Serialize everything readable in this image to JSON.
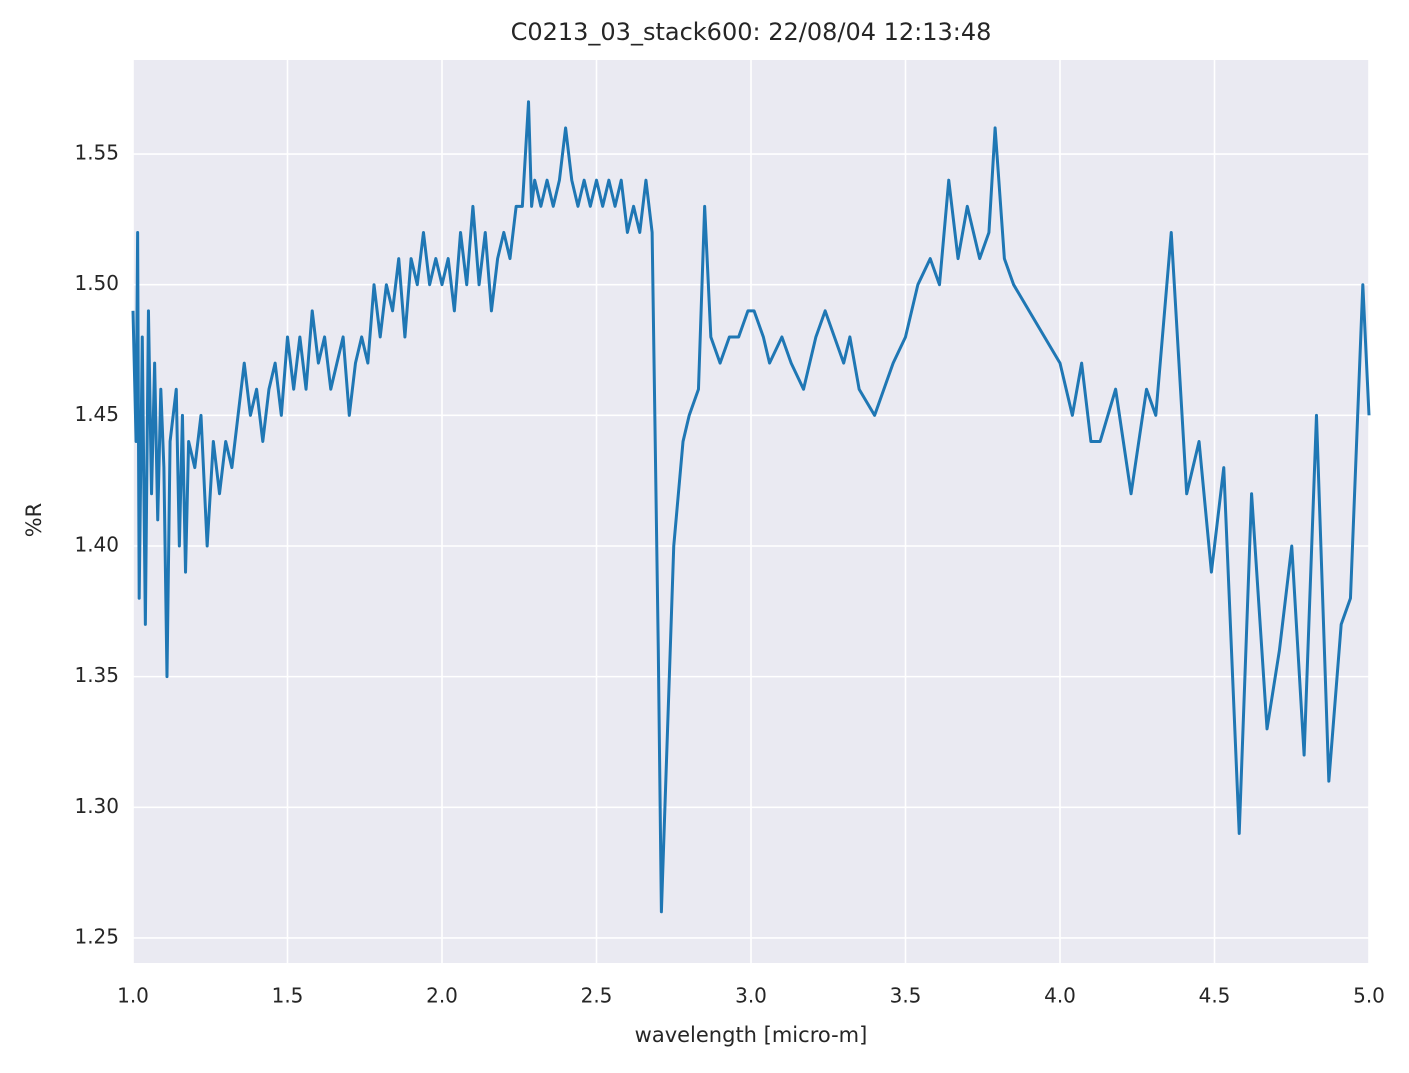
{
  "chart_data": {
    "type": "line",
    "title": "C0213_03_stack600:  22/08/04 12:13:48",
    "xlabel": "wavelength [micro-m]",
    "ylabel": "%R",
    "x": [
      1.0,
      1.01,
      1.015,
      1.02,
      1.03,
      1.04,
      1.05,
      1.06,
      1.07,
      1.08,
      1.09,
      1.1,
      1.11,
      1.12,
      1.14,
      1.15,
      1.16,
      1.17,
      1.18,
      1.2,
      1.22,
      1.24,
      1.26,
      1.28,
      1.3,
      1.32,
      1.34,
      1.36,
      1.38,
      1.4,
      1.42,
      1.44,
      1.46,
      1.48,
      1.5,
      1.52,
      1.54,
      1.56,
      1.58,
      1.6,
      1.62,
      1.64,
      1.66,
      1.68,
      1.7,
      1.72,
      1.74,
      1.76,
      1.78,
      1.8,
      1.82,
      1.84,
      1.86,
      1.88,
      1.9,
      1.92,
      1.94,
      1.96,
      1.98,
      2.0,
      2.02,
      2.04,
      2.06,
      2.08,
      2.1,
      2.12,
      2.14,
      2.16,
      2.18,
      2.2,
      2.22,
      2.24,
      2.26,
      2.28,
      2.29,
      2.3,
      2.32,
      2.34,
      2.36,
      2.38,
      2.4,
      2.42,
      2.44,
      2.46,
      2.48,
      2.5,
      2.52,
      2.54,
      2.56,
      2.58,
      2.6,
      2.62,
      2.64,
      2.66,
      2.68,
      2.7,
      2.71,
      2.73,
      2.75,
      2.78,
      2.8,
      2.83,
      2.85,
      2.87,
      2.9,
      2.93,
      2.96,
      2.99,
      3.01,
      3.04,
      3.06,
      3.1,
      3.13,
      3.17,
      3.21,
      3.24,
      3.27,
      3.3,
      3.32,
      3.35,
      3.4,
      3.43,
      3.46,
      3.5,
      3.54,
      3.58,
      3.61,
      3.64,
      3.67,
      3.7,
      3.74,
      3.77,
      3.79,
      3.82,
      3.85,
      3.9,
      3.95,
      4.0,
      4.04,
      4.07,
      4.1,
      4.13,
      4.18,
      4.23,
      4.28,
      4.31,
      4.36,
      4.41,
      4.45,
      4.49,
      4.53,
      4.58,
      4.62,
      4.67,
      4.71,
      4.75,
      4.79,
      4.83,
      4.87,
      4.91,
      4.94,
      4.98,
      5.0
    ],
    "series": [
      {
        "color": "#1f77b4",
        "values": [
          1.49,
          1.44,
          1.52,
          1.38,
          1.48,
          1.37,
          1.49,
          1.42,
          1.47,
          1.41,
          1.46,
          1.43,
          1.35,
          1.44,
          1.46,
          1.4,
          1.45,
          1.39,
          1.44,
          1.43,
          1.45,
          1.4,
          1.44,
          1.42,
          1.44,
          1.43,
          1.45,
          1.47,
          1.45,
          1.46,
          1.44,
          1.46,
          1.47,
          1.45,
          1.48,
          1.46,
          1.48,
          1.46,
          1.49,
          1.47,
          1.48,
          1.46,
          1.47,
          1.48,
          1.45,
          1.47,
          1.48,
          1.47,
          1.5,
          1.48,
          1.5,
          1.49,
          1.51,
          1.48,
          1.51,
          1.5,
          1.52,
          1.5,
          1.51,
          1.5,
          1.51,
          1.49,
          1.52,
          1.5,
          1.53,
          1.5,
          1.52,
          1.49,
          1.51,
          1.52,
          1.51,
          1.53,
          1.53,
          1.57,
          1.53,
          1.54,
          1.53,
          1.54,
          1.53,
          1.54,
          1.56,
          1.54,
          1.53,
          1.54,
          1.53,
          1.54,
          1.53,
          1.54,
          1.53,
          1.54,
          1.52,
          1.53,
          1.52,
          1.54,
          1.52,
          1.36,
          1.26,
          1.33,
          1.4,
          1.44,
          1.45,
          1.46,
          1.53,
          1.48,
          1.47,
          1.48,
          1.48,
          1.49,
          1.49,
          1.48,
          1.47,
          1.48,
          1.47,
          1.46,
          1.48,
          1.49,
          1.48,
          1.47,
          1.48,
          1.46,
          1.45,
          1.46,
          1.47,
          1.48,
          1.5,
          1.51,
          1.5,
          1.54,
          1.51,
          1.53,
          1.51,
          1.52,
          1.56,
          1.51,
          1.5,
          1.49,
          1.48,
          1.47,
          1.45,
          1.47,
          1.44,
          1.44,
          1.46,
          1.42,
          1.46,
          1.45,
          1.52,
          1.42,
          1.44,
          1.39,
          1.43,
          1.29,
          1.42,
          1.33,
          1.36,
          1.4,
          1.32,
          1.45,
          1.31,
          1.37,
          1.38,
          1.5,
          1.45
        ]
      }
    ],
    "xlim": [
      1.0,
      5.0
    ],
    "xticks": [
      {
        "value": 1,
        "label": "1.0"
      },
      1.5,
      {
        "value": 2,
        "label": "2.0"
      },
      2.5,
      {
        "value": 3,
        "label": "3.0"
      },
      3.5,
      {
        "value": 4,
        "label": "4.0"
      },
      4.5,
      {
        "value": 5,
        "label": "5.0"
      }
    ],
    "ylim": [
      1.2404,
      1.586
    ],
    "yticks": [
      1.25,
      {
        "value": 1.3,
        "label": "1.30"
      },
      1.35,
      {
        "value": 1.4,
        "label": "1.40"
      },
      1.45,
      {
        "value": 1.5,
        "label": "1.50"
      },
      1.55
    ],
    "grid": true
  }
}
